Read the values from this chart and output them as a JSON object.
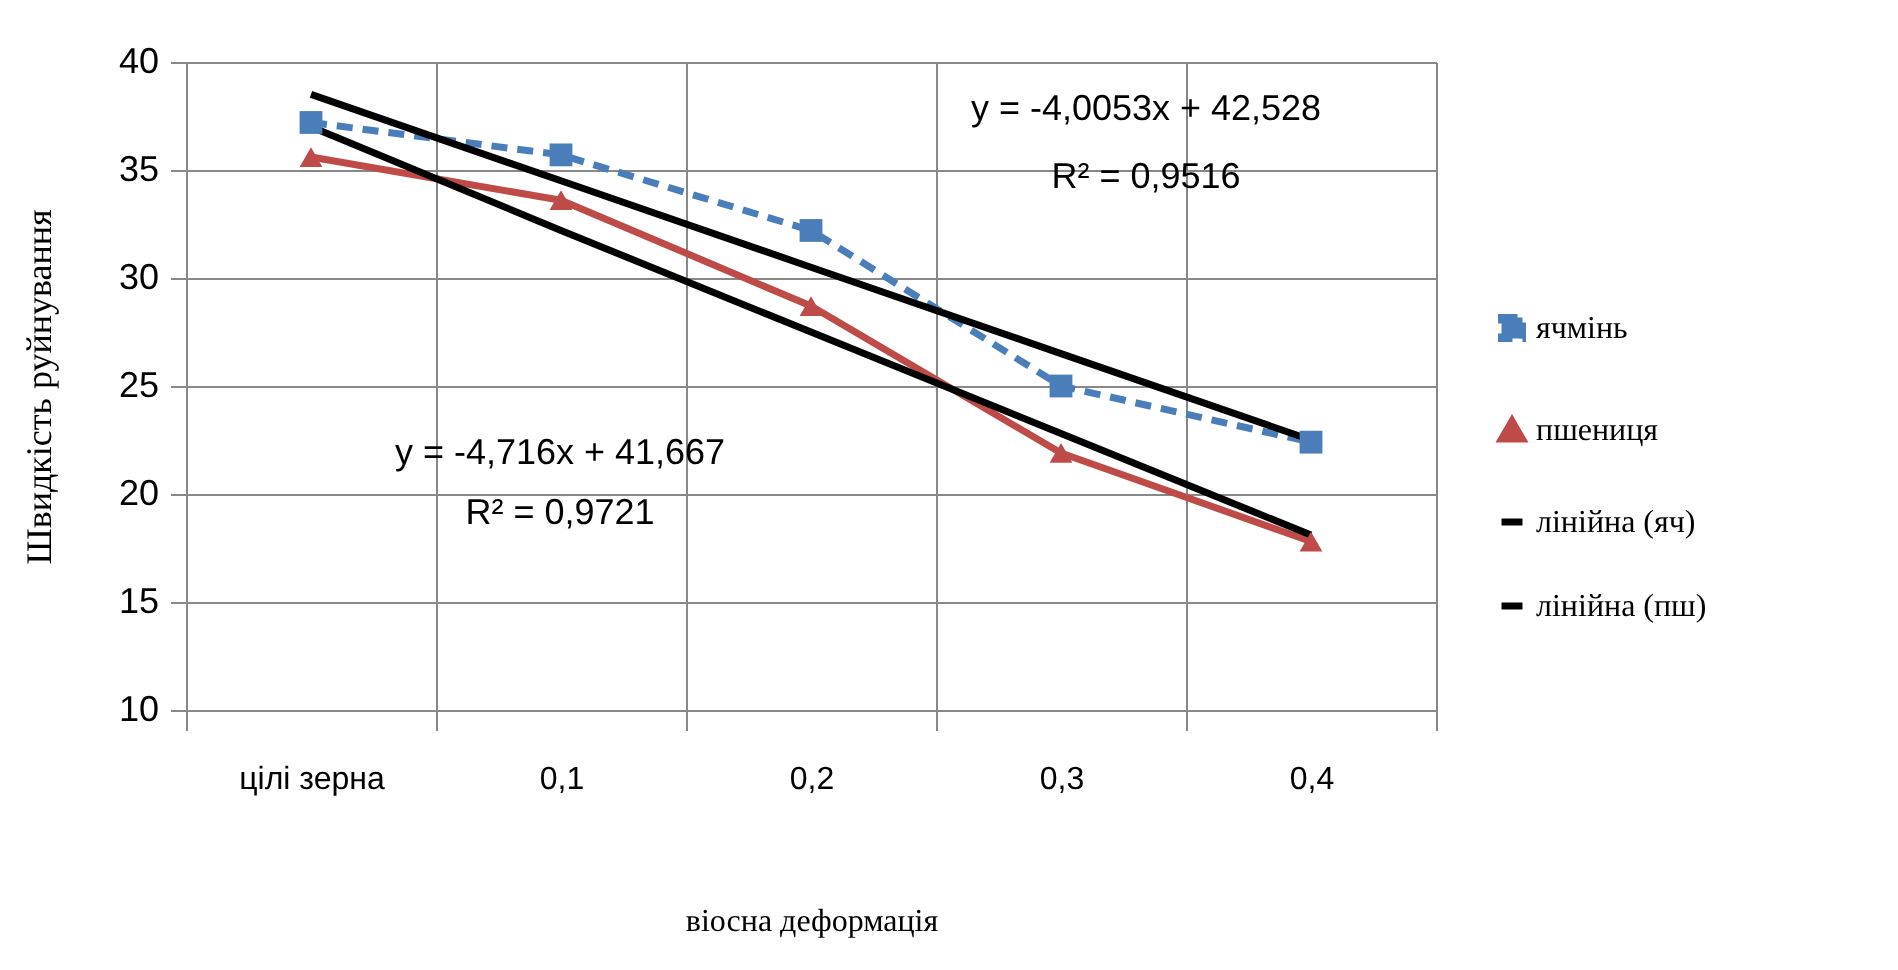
{
  "chart_data": {
    "type": "line",
    "xlabel": "віосна деформація",
    "ylabel": "Швидкість руйнування",
    "categories": [
      "цілі зерна",
      "0,1",
      "0,2",
      "0,3",
      "0,4"
    ],
    "series": [
      {
        "name": "ячмінь",
        "color": "#4a7ebb",
        "values": [
          37.2,
          35.7,
          32.2,
          25.0,
          22.4
        ],
        "marker": "square",
        "line_style": "dashed"
      },
      {
        "name": "пшениця",
        "color": "#be4b48",
        "values": [
          35.6,
          33.6,
          28.7,
          21.9,
          17.8
        ],
        "marker": "triangle",
        "line_style": "solid"
      },
      {
        "name": "лінійна (яч)",
        "color": "#000000",
        "values": [
          38.5,
          34.5,
          30.5,
          26.5,
          22.5
        ],
        "marker": "none",
        "line_style": "solid"
      },
      {
        "name": "лінійна (пш)",
        "color": "#000000",
        "values": [
          37.0,
          32.2,
          27.5,
          22.8,
          18.1
        ],
        "marker": "none",
        "line_style": "solid"
      }
    ],
    "ylim": [
      10,
      40
    ],
    "yticks": [
      10,
      15,
      20,
      25,
      30,
      35,
      40
    ],
    "grid": true,
    "legend": "right",
    "annotations": [
      "y = -4,0053x + 42,528",
      "R² = 0,9516",
      "y = -4,716x + 41,667",
      "R² = 0,9721"
    ]
  }
}
